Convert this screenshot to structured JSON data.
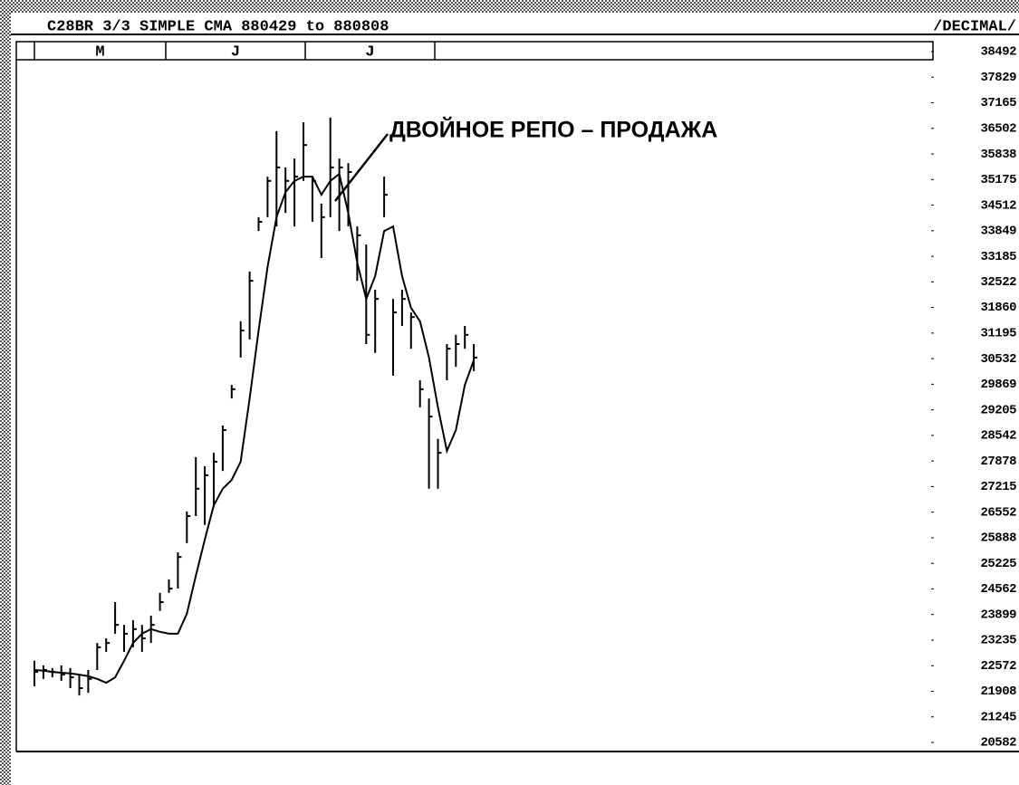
{
  "chart_data": {
    "type": "ohlc",
    "title": "C28BR 3/3 SIMPLE CMA   880429 to 880808",
    "mode": "/DECIMAL/",
    "annotation": "ДВОЙНОЕ РЕПО – ПРОДАЖА",
    "months": [
      "M",
      "J",
      "J"
    ],
    "ylim": [
      20582,
      38492
    ],
    "yticks": [
      38492,
      37829,
      37165,
      36502,
      35838,
      35175,
      34512,
      33849,
      33185,
      32522,
      31860,
      31195,
      30532,
      29869,
      29205,
      28542,
      27878,
      27215,
      26552,
      25888,
      25225,
      24562,
      23899,
      23235,
      22572,
      21908,
      21245,
      20582
    ],
    "color": "#000000",
    "high": [
      22700,
      22580,
      22510,
      22580,
      22510,
      22340,
      22460,
      23160,
      23280,
      24220,
      23630,
      23750,
      23630,
      23870,
      24460,
      24810,
      25510,
      26570,
      27980,
      27740,
      28090,
      28800,
      29850,
      31500,
      32790,
      34200,
      35250,
      36430,
      35490,
      35720,
      36660,
      35250,
      34550,
      36780,
      35720,
      35600,
      33960,
      33490,
      32320,
      35250,
      32080,
      32320,
      31730,
      29970,
      29500,
      28450,
      30910,
      31150,
      31380,
      30910
    ],
    "low": [
      22040,
      22230,
      22270,
      22180,
      21990,
      21800,
      21870,
      22460,
      22930,
      23400,
      22930,
      23050,
      22930,
      23160,
      23990,
      24460,
      24570,
      25750,
      26450,
      26220,
      26690,
      27620,
      29500,
      30560,
      31030,
      33840,
      34200,
      33960,
      34310,
      33960,
      35140,
      34080,
      33140,
      34200,
      33840,
      33960,
      32550,
      30910,
      30680,
      34200,
      30090,
      31380,
      30790,
      29270,
      27160,
      27160,
      29970,
      30320,
      30790,
      30210
    ],
    "close": [
      22410,
      22460,
      22410,
      22340,
      22270,
      21990,
      22230,
      23050,
      23160,
      23630,
      23400,
      23520,
      23280,
      23630,
      24220,
      24570,
      25390,
      26450,
      27160,
      27510,
      27860,
      28680,
      29740,
      31260,
      32550,
      34080,
      35140,
      35490,
      35140,
      35250,
      36070,
      35140,
      34200,
      35490,
      35490,
      35370,
      33730,
      31150,
      32080,
      34780,
      31730,
      32080,
      31610,
      29740,
      29030,
      28090,
      30790,
      30910,
      31150,
      30560
    ],
    "average": [
      22460,
      22440,
      22410,
      22390,
      22370,
      22340,
      22300,
      22230,
      22130,
      22270,
      22700,
      23160,
      23400,
      23520,
      23450,
      23400,
      23400,
      23920,
      24900,
      25840,
      26730,
      27160,
      27390,
      27860,
      29500,
      31260,
      32910,
      34200,
      34850,
      35140,
      35250,
      35250,
      34780,
      35140,
      35320,
      34310,
      33020,
      32080,
      32670,
      33840,
      33960,
      32670,
      31850,
      31500,
      30560,
      29270,
      28140,
      28680,
      29850,
      30490
    ]
  }
}
